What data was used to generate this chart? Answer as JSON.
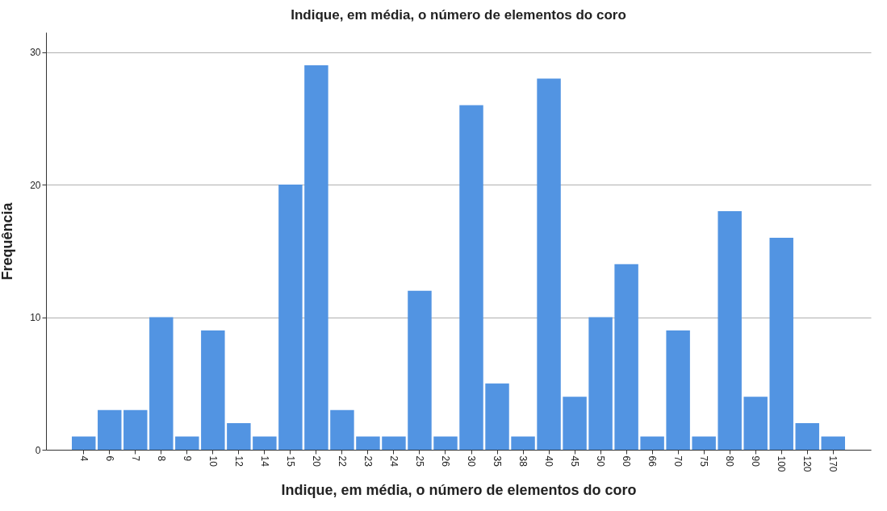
{
  "chart_data": {
    "type": "bar",
    "title": "Indique, em média, o número de elementos do coro",
    "xlabel": "Indique, em média, o número de elementos do coro",
    "ylabel": "Frequência",
    "categories": [
      "4",
      "6",
      "7",
      "8",
      "9",
      "10",
      "12",
      "14",
      "15",
      "20",
      "22",
      "23",
      "24",
      "25",
      "26",
      "30",
      "35",
      "38",
      "40",
      "45",
      "50",
      "60",
      "66",
      "70",
      "75",
      "80",
      "90",
      "100",
      "120",
      "170"
    ],
    "values": [
      1,
      3,
      3,
      10,
      1,
      9,
      2,
      1,
      20,
      29,
      3,
      1,
      1,
      12,
      1,
      26,
      5,
      1,
      28,
      4,
      10,
      14,
      1,
      9,
      1,
      18,
      4,
      16,
      2,
      1
    ],
    "color": "#5294e2",
    "ylim": [
      0,
      31.5
    ],
    "yticks": [
      0,
      10,
      20,
      30
    ],
    "grid": "y"
  }
}
